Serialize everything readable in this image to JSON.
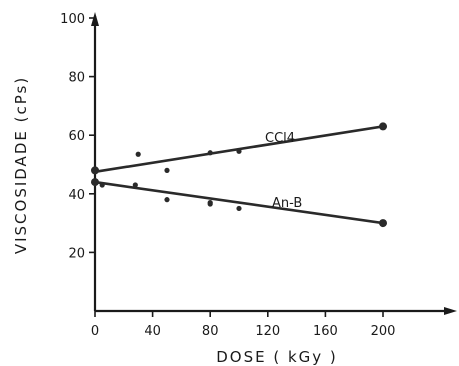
{
  "chart_data": {
    "type": "scatter",
    "xlabel": "DOSE ( kGy )",
    "ylabel": "VISCOSIDADE (cPs)",
    "xlim": [
      0,
      240
    ],
    "ylim": [
      0,
      100
    ],
    "x_ticks": [
      0,
      40,
      80,
      120,
      160,
      200
    ],
    "y_ticks": [
      20,
      40,
      60,
      80,
      100
    ],
    "x_tick_labels": [
      "0",
      "40",
      "80",
      "120",
      "160",
      "200"
    ],
    "y_tick_labels": [
      "20",
      "40",
      "60",
      "80",
      "100"
    ],
    "grid": false,
    "legend": "none",
    "series": [
      {
        "name": "CCl4",
        "color": "#2a2a2a",
        "points": [
          [
            0,
            48
          ],
          [
            30,
            53.5
          ],
          [
            50,
            48
          ],
          [
            80,
            54
          ],
          [
            100,
            54.5
          ],
          [
            200,
            63
          ]
        ],
        "fit": [
          [
            0,
            47.5
          ],
          [
            200,
            63
          ]
        ]
      },
      {
        "name": "An-B",
        "color": "#2a2a2a",
        "points": [
          [
            0,
            44
          ],
          [
            5,
            43
          ],
          [
            28,
            43
          ],
          [
            50,
            38
          ],
          [
            80,
            37
          ],
          [
            80,
            36.5
          ],
          [
            100,
            35
          ],
          [
            200,
            30
          ]
        ],
        "fit": [
          [
            0,
            44
          ],
          [
            200,
            30
          ]
        ]
      }
    ]
  }
}
